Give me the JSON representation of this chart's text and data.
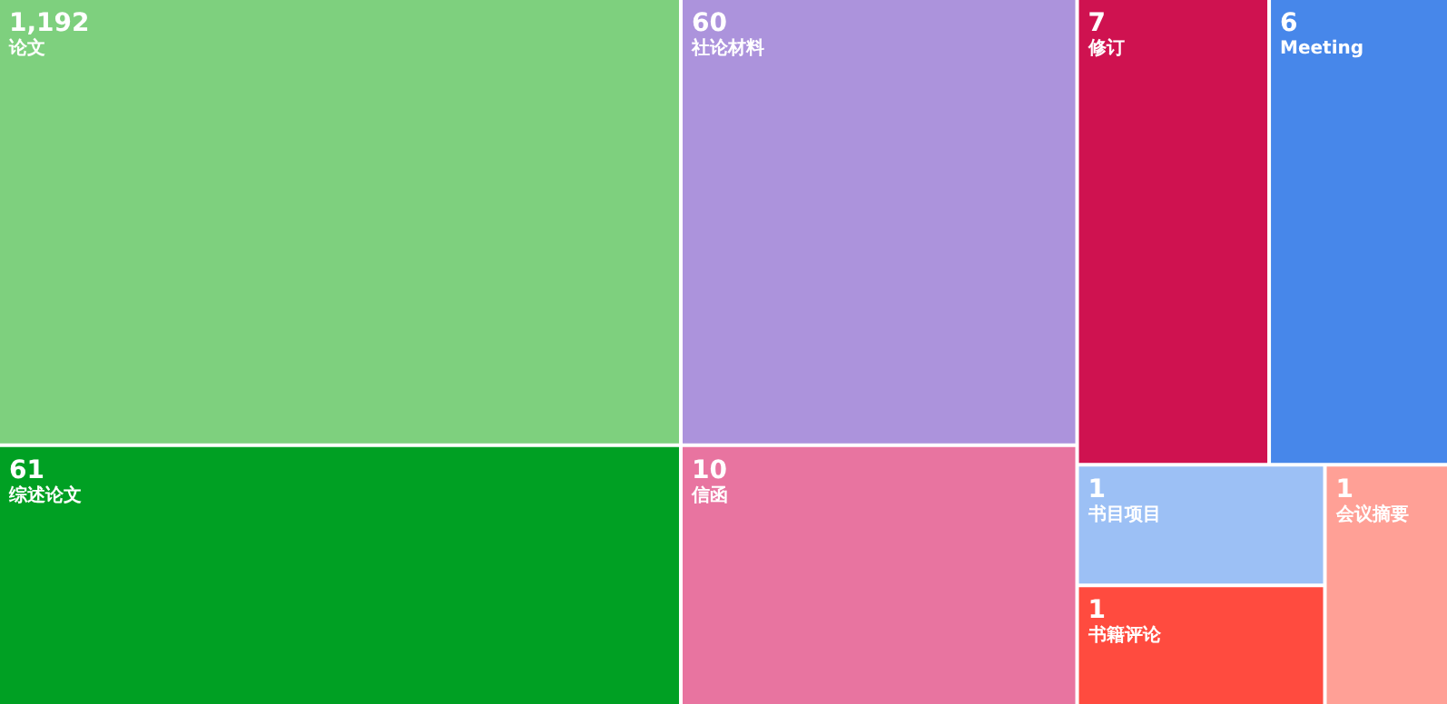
{
  "chart_data": {
    "type": "other",
    "categories": [
      "论文",
      "综述论文",
      "社论材料",
      "信函",
      "修订",
      "Meeting",
      "书目项目",
      "书籍评论",
      "会议摘要"
    ],
    "values": [
      1192,
      61,
      60,
      10,
      7,
      6,
      1,
      1,
      1
    ],
    "value_labels": [
      "1,192",
      "61",
      "60",
      "10",
      "7",
      "6",
      "1",
      "1",
      "1"
    ],
    "colors": [
      "#7ed07e",
      "#00a023",
      "#ac93dc",
      "#e874a0",
      "#cf1250",
      "#4787ea",
      "#9cc0f5",
      "#ff4b3f",
      "#ffa096"
    ]
  }
}
